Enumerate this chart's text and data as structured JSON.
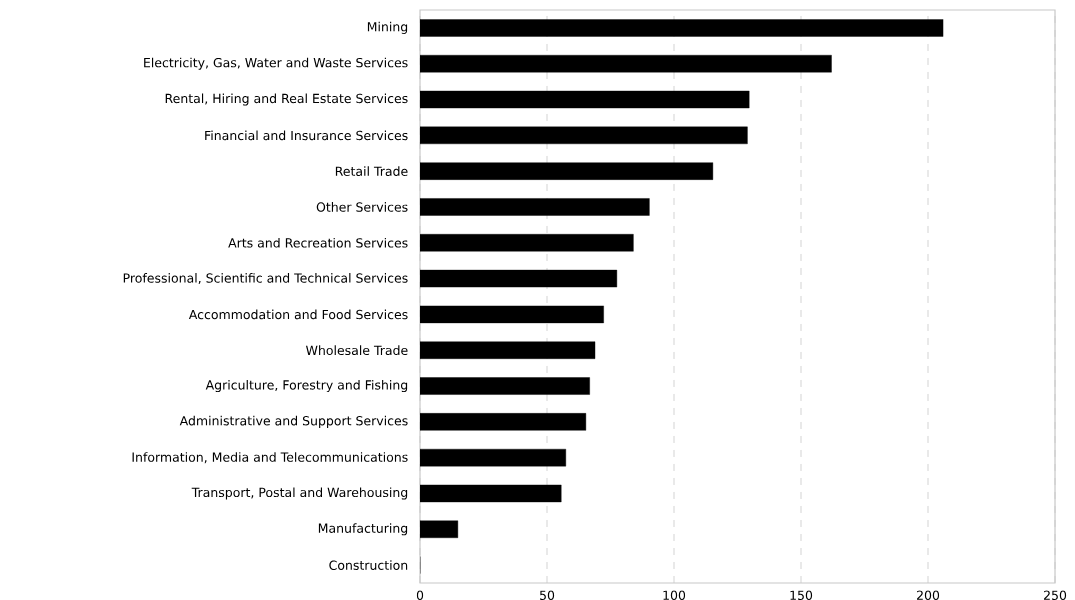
{
  "chart_data": {
    "type": "bar",
    "orientation": "horizontal",
    "categories": [
      "Mining",
      "Electricity, Gas, Water and Waste Services",
      "Rental, Hiring and Real Estate Services",
      "Financial and Insurance Services",
      "Retail Trade",
      "Other Services",
      "Arts and Recreation Services",
      "Professional, Scientific and Technical Services",
      "Accommodation and Food Services",
      "Wholesale Trade",
      "Agriculture, Forestry and Fishing",
      "Administrative and Support Services",
      "Information, Media and Telecommunications",
      "Transport, Postal and Warehousing",
      "Manufacturing",
      "Construction"
    ],
    "values": [
      206,
      162,
      129.6,
      128.9,
      115.3,
      90.3,
      84,
      77.5,
      72.3,
      68.9,
      66.8,
      65.3,
      57.4,
      55.6,
      14.9,
      0
    ],
    "color": "#000000",
    "xlim": [
      0,
      250
    ],
    "xticks": [
      0,
      50,
      100,
      150,
      200,
      250
    ],
    "grid": "x"
  }
}
